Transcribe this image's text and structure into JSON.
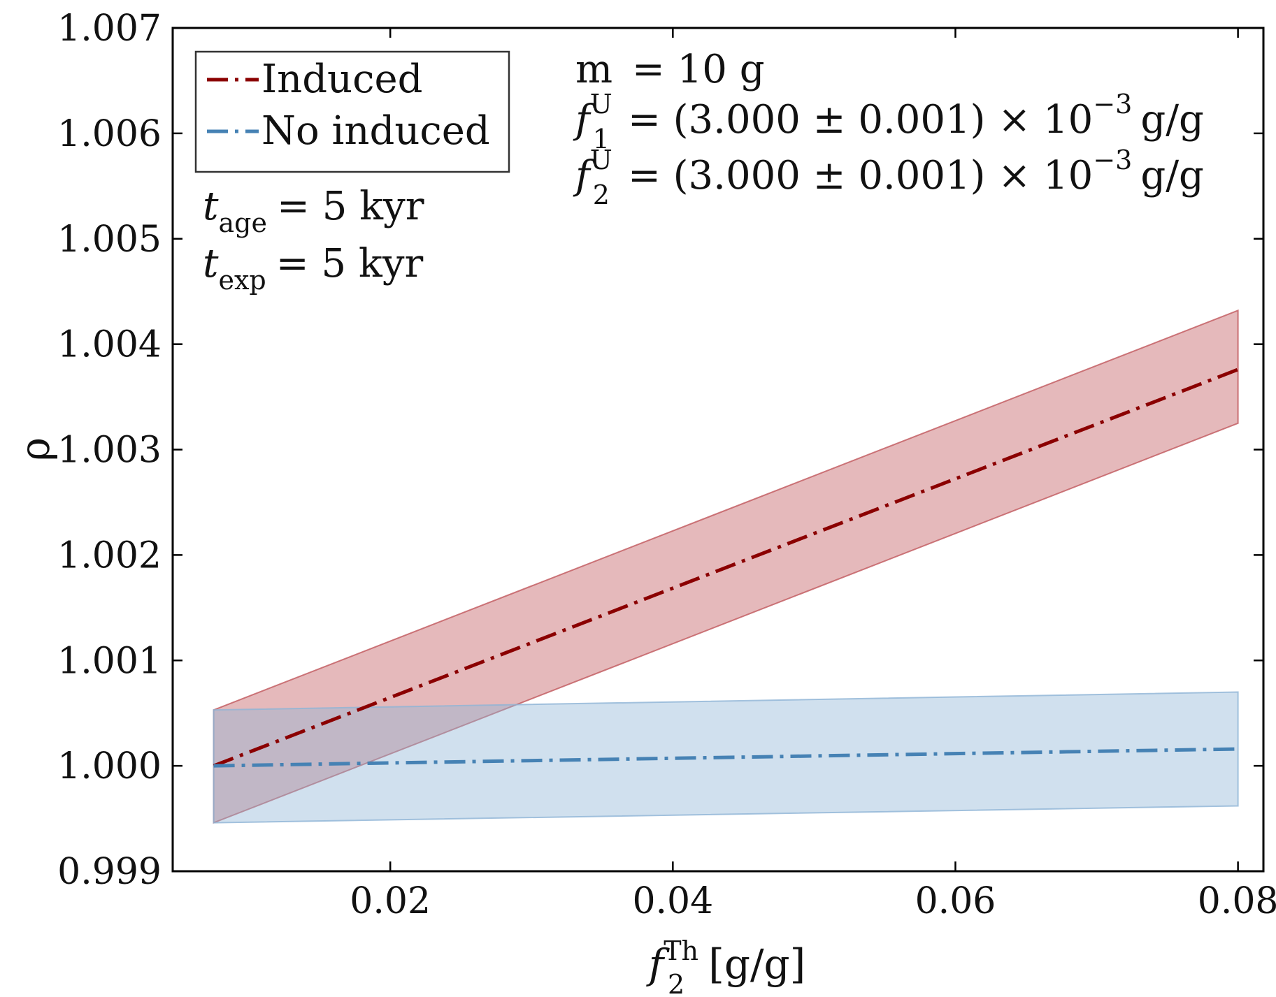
{
  "chart_data": {
    "type": "line",
    "title": "",
    "xlabel": {
      "base": "f",
      "sub": "2",
      "sup": "Th",
      "unit": "[g/g]"
    },
    "ylabel": "ρ",
    "xlim": [
      0.0046,
      0.0818
    ],
    "ylim": [
      0.999,
      1.007
    ],
    "x_ticks": [
      0.02,
      0.04,
      0.06,
      0.08
    ],
    "x_tick_labels": [
      "0.02",
      "0.04",
      "0.06",
      "0.08"
    ],
    "y_ticks": [
      0.999,
      1.0,
      1.001,
      1.002,
      1.003,
      1.004,
      1.005,
      1.006,
      1.007
    ],
    "y_tick_labels": [
      "0.999",
      "1.000",
      "1.001",
      "1.002",
      "1.003",
      "1.004",
      "1.005",
      "1.006",
      "1.007"
    ],
    "legend_position": "top-left",
    "series": [
      {
        "name": "Induced",
        "color": "#8b0000",
        "band_color": "#c0575c",
        "x": [
          0.0075,
          0.08
        ],
        "values": [
          1.0,
          1.00376
        ],
        "band_lower": [
          0.99946,
          1.00325
        ],
        "band_upper": [
          1.00053,
          1.00432
        ]
      },
      {
        "name": "No induced",
        "color": "#4682b4",
        "band_color": "#8fb4d6",
        "x": [
          0.0075,
          0.08
        ],
        "values": [
          1.0,
          1.00016
        ],
        "band_lower": [
          0.99946,
          0.99962
        ],
        "band_upper": [
          1.00053,
          1.0007
        ]
      }
    ],
    "annotations": {
      "mass": {
        "lhs": "m",
        "rhs": "= 10 g"
      },
      "f1": {
        "base": "f",
        "sub": "1",
        "sup": "U",
        "rhs": "= (3.000 ± 0.001) × 10",
        "exp": "−3",
        "unit": "g/g"
      },
      "f2": {
        "base": "f",
        "sub": "2",
        "sup": "U",
        "rhs": "= (3.000 ± 0.001) × 10",
        "exp": "−3",
        "unit": "g/g"
      },
      "t_age": {
        "base": "t",
        "sub": "age",
        "rhs": "= 5 kyr"
      },
      "t_exp": {
        "base": "t",
        "sub": "exp",
        "rhs": "= 5 kyr"
      }
    }
  }
}
